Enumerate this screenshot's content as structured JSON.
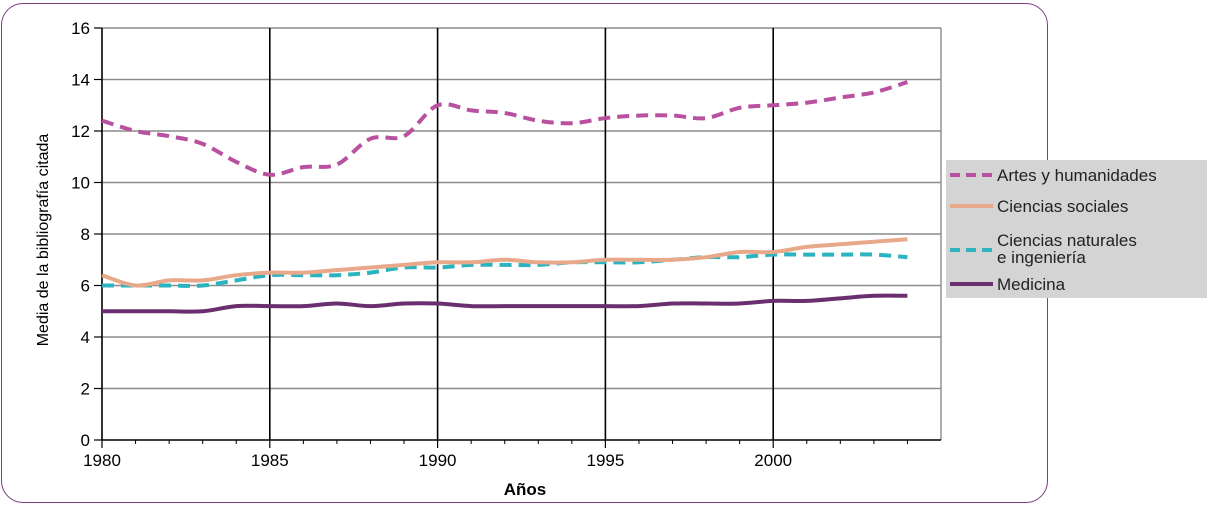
{
  "chart_data": {
    "type": "line",
    "xlabel": "Años",
    "ylabel": "Media de la bibliografía citada",
    "xlim": [
      1980,
      2005
    ],
    "ylim": [
      0,
      16
    ],
    "x_ticks": [
      "1980",
      "1985",
      "1990",
      "1995",
      "2000"
    ],
    "y_ticks": [
      "0",
      "2",
      "4",
      "6",
      "8",
      "10",
      "12",
      "14",
      "16"
    ],
    "grid": "both",
    "legend_position": "right",
    "series": [
      {
        "name": "Artes y humanidades",
        "color": "#b8519f",
        "dash": "dashed",
        "x": [
          1980,
          1981,
          1982,
          1983,
          1984,
          1985,
          1986,
          1987,
          1988,
          1989,
          1990,
          1991,
          1992,
          1993,
          1994,
          1995,
          1996,
          1997,
          1998,
          1999,
          2000,
          2001,
          2002,
          2003,
          2004
        ],
        "y": [
          12.4,
          12.0,
          11.8,
          11.5,
          10.8,
          10.3,
          10.6,
          10.7,
          11.7,
          11.8,
          13.0,
          12.8,
          12.7,
          12.4,
          12.3,
          12.5,
          12.6,
          12.6,
          12.5,
          12.9,
          13.0,
          13.1,
          13.3,
          13.5,
          13.9
        ]
      },
      {
        "name": "Ciencias sociales",
        "color": "#e8a98a",
        "dash": "solid",
        "x": [
          1980,
          1981,
          1982,
          1983,
          1984,
          1985,
          1986,
          1987,
          1988,
          1989,
          1990,
          1991,
          1992,
          1993,
          1994,
          1995,
          1996,
          1997,
          1998,
          1999,
          2000,
          2001,
          2002,
          2003,
          2004
        ],
        "y": [
          6.4,
          6.0,
          6.2,
          6.2,
          6.4,
          6.5,
          6.5,
          6.6,
          6.7,
          6.8,
          6.9,
          6.9,
          7.0,
          6.9,
          6.9,
          7.0,
          7.0,
          7.0,
          7.1,
          7.3,
          7.3,
          7.5,
          7.6,
          7.7,
          7.8
        ]
      },
      {
        "name": "Ciencias naturales e ingeniería",
        "name_lines": [
          "Ciencias naturales",
          "e ingeniería"
        ],
        "color": "#2bb3bf",
        "dash": "dashed",
        "x": [
          1980,
          1981,
          1982,
          1983,
          1984,
          1985,
          1986,
          1987,
          1988,
          1989,
          1990,
          1991,
          1992,
          1993,
          1994,
          1995,
          1996,
          1997,
          1998,
          1999,
          2000,
          2001,
          2002,
          2003,
          2004
        ],
        "y": [
          6.0,
          6.0,
          6.0,
          6.0,
          6.2,
          6.4,
          6.4,
          6.4,
          6.5,
          6.7,
          6.7,
          6.8,
          6.8,
          6.8,
          6.9,
          6.9,
          6.9,
          7.0,
          7.1,
          7.1,
          7.2,
          7.2,
          7.2,
          7.2,
          7.1
        ]
      },
      {
        "name": "Medicina",
        "color": "#6a2f6e",
        "dash": "solid",
        "x": [
          1980,
          1981,
          1982,
          1983,
          1984,
          1985,
          1986,
          1987,
          1988,
          1989,
          1990,
          1991,
          1992,
          1993,
          1994,
          1995,
          1996,
          1997,
          1998,
          1999,
          2000,
          2001,
          2002,
          2003,
          2004
        ],
        "y": [
          5.0,
          5.0,
          5.0,
          5.0,
          5.2,
          5.2,
          5.2,
          5.3,
          5.2,
          5.3,
          5.3,
          5.2,
          5.2,
          5.2,
          5.2,
          5.2,
          5.2,
          5.3,
          5.3,
          5.3,
          5.4,
          5.4,
          5.5,
          5.6,
          5.6
        ]
      }
    ]
  }
}
